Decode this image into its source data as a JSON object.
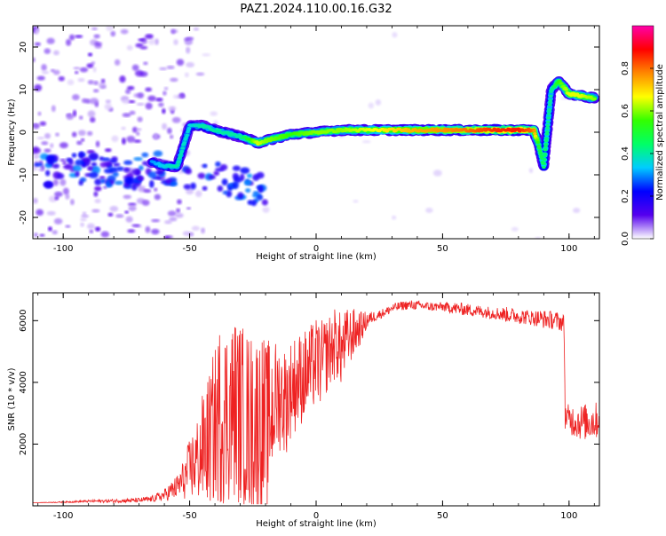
{
  "title": "PAZ1.2024.110.00.16.G32",
  "colors": {
    "snr_line": "#ee2222",
    "background": "#ffffff",
    "axis": "#000000"
  },
  "chart_data": [
    {
      "type": "heatmap",
      "xlabel": "Height of straight line (km)",
      "ylabel": "Frequency (Hz)",
      "xlim": [
        -112,
        112
      ],
      "ylim": [
        -25,
        25
      ],
      "x_ticks": [
        -100,
        -50,
        0,
        50,
        100
      ],
      "y_ticks": [
        -20,
        -10,
        0,
        10,
        20
      ],
      "colorbar": {
        "label": "Normalized spectral amplitude",
        "range": [
          0,
          1
        ],
        "ticks": [
          0.0,
          0.2,
          0.4,
          0.6,
          0.8
        ],
        "tick_labels": [
          "0.0",
          "0.2",
          "0.4",
          "0.6",
          "0.8"
        ],
        "colormap": [
          "#ffffff",
          "#5500ee",
          "#0000ff",
          "#00ccff",
          "#00ff66",
          "#33ff00",
          "#ffff00",
          "#ff8800",
          "#ff0000",
          "#ff00aa"
        ]
      },
      "ridge": [
        {
          "x": -65,
          "y": -7,
          "amp": 0.25
        },
        {
          "x": -60,
          "y": -8,
          "amp": 0.3
        },
        {
          "x": -55,
          "y": -8,
          "amp": 0.35
        },
        {
          "x": -50,
          "y": 1.5,
          "amp": 0.3
        },
        {
          "x": -45,
          "y": 1.5,
          "amp": 0.35
        },
        {
          "x": -40,
          "y": 0.5,
          "amp": 0.35
        },
        {
          "x": -30,
          "y": -1,
          "amp": 0.35
        },
        {
          "x": -23,
          "y": -2.5,
          "amp": 0.6
        },
        {
          "x": -20,
          "y": -2,
          "amp": 0.55
        },
        {
          "x": -10,
          "y": -0.5,
          "amp": 0.5
        },
        {
          "x": 0,
          "y": 0,
          "amp": 0.55
        },
        {
          "x": 10,
          "y": 0.5,
          "amp": 0.55
        },
        {
          "x": 20,
          "y": 0.5,
          "amp": 0.6
        },
        {
          "x": 30,
          "y": 0.5,
          "amp": 0.65
        },
        {
          "x": 40,
          "y": 0.5,
          "amp": 0.7
        },
        {
          "x": 50,
          "y": 0.5,
          "amp": 0.72
        },
        {
          "x": 60,
          "y": 0.5,
          "amp": 0.75
        },
        {
          "x": 70,
          "y": 0.5,
          "amp": 0.8
        },
        {
          "x": 80,
          "y": 0.5,
          "amp": 0.82
        },
        {
          "x": 86,
          "y": 0.5,
          "amp": 0.75
        },
        {
          "x": 88,
          "y": -3,
          "amp": 0.45
        },
        {
          "x": 90,
          "y": -8,
          "amp": 0.4
        },
        {
          "x": 93,
          "y": 10,
          "amp": 0.35
        },
        {
          "x": 96,
          "y": 12,
          "amp": 0.5
        },
        {
          "x": 100,
          "y": 9,
          "amp": 0.6
        },
        {
          "x": 105,
          "y": 8.5,
          "amp": 0.6
        },
        {
          "x": 110,
          "y": 8,
          "amp": 0.55
        }
      ]
    },
    {
      "type": "line",
      "xlabel": "Height of straight line (km)",
      "ylabel": "SNR (10 * v/v)",
      "xlim": [
        -112,
        112
      ],
      "ylim": [
        0,
        6900
      ],
      "x_ticks": [
        -100,
        -50,
        0,
        50,
        100
      ],
      "y_ticks": [
        2000,
        4000,
        6000
      ],
      "series": [
        {
          "x": [
            -112,
            -100,
            -90,
            -80,
            -70,
            -65,
            -60,
            -55,
            -52,
            -50,
            -47,
            -45,
            -42,
            -40,
            -38,
            -35,
            -32,
            -30,
            -28,
            -25,
            -22,
            -20,
            -18,
            -15,
            -12,
            -10,
            -8,
            -5,
            -2,
            0,
            2,
            5,
            8,
            10,
            12,
            15,
            18,
            20,
            22,
            25,
            28,
            30,
            35,
            40,
            45,
            50,
            55,
            60,
            65,
            70,
            75,
            80,
            85,
            90,
            95,
            97,
            98,
            98.5,
            100,
            105,
            110,
            112
          ],
          "y": [
            100,
            120,
            150,
            160,
            180,
            220,
            350,
            600,
            900,
            1200,
            1500,
            1800,
            2200,
            2600,
            3000,
            3000,
            3200,
            3000,
            2800,
            2600,
            2800,
            2400,
            3000,
            3600,
            3400,
            3800,
            4000,
            4200,
            4400,
            4700,
            4600,
            5000,
            5300,
            5000,
            5400,
            5600,
            5800,
            6000,
            6100,
            6200,
            6300,
            6400,
            6500,
            6500,
            6450,
            6450,
            6400,
            6350,
            6300,
            6250,
            6200,
            6150,
            6100,
            6050,
            6000,
            5950,
            5900,
            2900,
            2800,
            2700,
            2750,
            2800
          ],
          "noise": [
            0,
            20,
            40,
            60,
            80,
            100,
            200,
            400,
            700,
            1000,
            1400,
            1800,
            2200,
            2600,
            3000,
            3000,
            3000,
            3000,
            3000,
            3000,
            3000,
            3000,
            2400,
            1800,
            1800,
            1600,
            1600,
            1500,
            1500,
            1400,
            1400,
            1200,
            1200,
            1200,
            1000,
            800,
            500,
            300,
            200,
            150,
            150,
            150,
            150,
            150,
            150,
            150,
            200,
            200,
            200,
            200,
            250,
            250,
            250,
            300,
            300,
            300,
            300,
            400,
            500,
            600,
            600,
            600
          ]
        }
      ]
    }
  ]
}
